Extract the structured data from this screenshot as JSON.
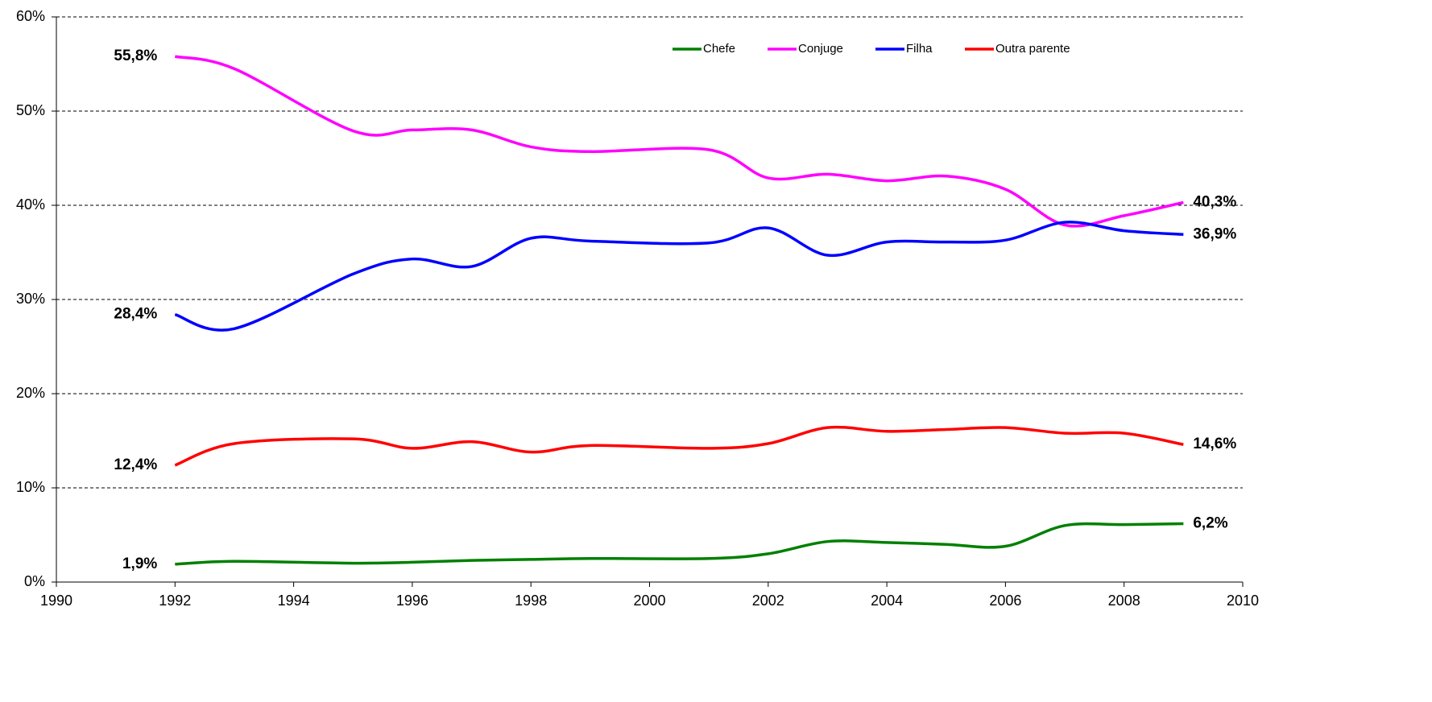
{
  "chart_data": {
    "type": "line",
    "x": [
      1992,
      1993,
      1995,
      1996,
      1997,
      1998,
      1999,
      2001,
      2002,
      2003,
      2004,
      2005,
      2006,
      2007,
      2008,
      2009
    ],
    "series": [
      {
        "name": "Chefe",
        "color": "#008000",
        "values": [
          1.9,
          2.2,
          2.0,
          2.1,
          2.3,
          2.4,
          2.5,
          2.5,
          3.0,
          4.3,
          4.2,
          4.0,
          3.8,
          6.0,
          6.1,
          6.2
        ],
        "value_labels": [
          "1,9%",
          null,
          null,
          null,
          null,
          null,
          null,
          null,
          null,
          null,
          null,
          null,
          null,
          null,
          null,
          "6,2%"
        ]
      },
      {
        "name": "Conjuge",
        "color": "#ff00ff",
        "values": [
          55.8,
          54.5,
          47.9,
          48.0,
          48.0,
          46.2,
          45.7,
          45.9,
          42.9,
          43.3,
          42.6,
          43.1,
          41.7,
          37.9,
          38.9,
          40.3
        ],
        "value_labels": [
          "55,8%",
          null,
          null,
          null,
          null,
          null,
          null,
          null,
          null,
          null,
          null,
          null,
          null,
          null,
          null,
          "40,3%"
        ]
      },
      {
        "name": "Filha",
        "color": "#0000ff",
        "values": [
          28.4,
          26.9,
          32.7,
          34.3,
          33.5,
          36.5,
          36.2,
          36.0,
          37.6,
          34.7,
          36.1,
          36.1,
          36.3,
          38.2,
          37.3,
          36.9
        ],
        "value_labels": [
          "28,4%",
          null,
          null,
          null,
          null,
          null,
          null,
          null,
          null,
          null,
          null,
          null,
          null,
          null,
          null,
          "36,9%"
        ]
      },
      {
        "name": "Outra parente",
        "color": "#ff0000",
        "values": [
          12.4,
          14.7,
          15.2,
          14.2,
          14.9,
          13.8,
          14.5,
          14.2,
          14.7,
          16.4,
          16.0,
          16.2,
          16.4,
          15.8,
          15.8,
          14.6
        ],
        "value_labels": [
          "12,4%",
          null,
          null,
          null,
          null,
          null,
          null,
          null,
          null,
          null,
          null,
          null,
          null,
          null,
          null,
          "14,6%"
        ]
      }
    ],
    "xlim": [
      1990,
      2010
    ],
    "xticks": [
      1990,
      1992,
      1994,
      1996,
      1998,
      2000,
      2002,
      2004,
      2006,
      2008,
      2010
    ],
    "ylim": [
      0,
      60
    ],
    "yticks": [
      {
        "value": 0,
        "label": "0%"
      },
      {
        "value": 10,
        "label": "10%"
      },
      {
        "value": 20,
        "label": "20%"
      },
      {
        "value": 30,
        "label": "30%"
      },
      {
        "value": 40,
        "label": "40%"
      },
      {
        "value": 50,
        "label": "50%"
      },
      {
        "value": 60,
        "label": "60%"
      }
    ],
    "grid": true,
    "legend": "top"
  }
}
